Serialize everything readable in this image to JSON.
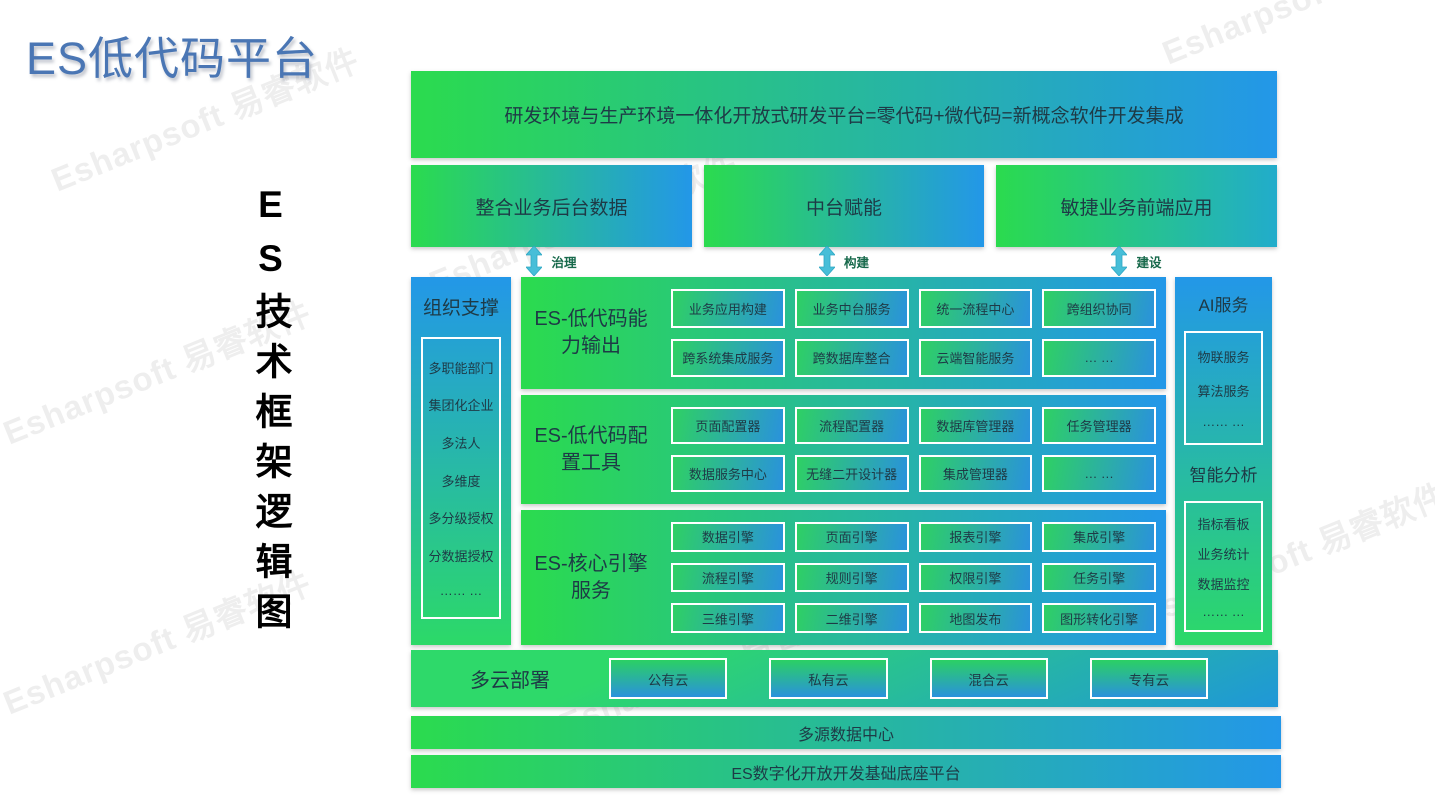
{
  "page": {
    "title": "ES低代码平台",
    "vertical_title": "ES技术框架逻辑图",
    "watermark": "Esharpsoft 易睿软件"
  },
  "banner": {
    "text": "研发环境与生产环境一体化开放式研发平台=零代码+微代码=新概念软件开发集成"
  },
  "pillars": [
    {
      "label": "整合业务后台数据",
      "arrow_label": "治理"
    },
    {
      "label": "中台赋能",
      "arrow_label": "构建"
    },
    {
      "label": "敏捷业务前端应用",
      "arrow_label": "建设"
    }
  ],
  "org_column": {
    "title": "组织支撑",
    "items": [
      "多职能部门",
      "集团化企业",
      "多法人",
      "多维度",
      "多分级授权",
      "分数据授权",
      "…… …"
    ]
  },
  "capability_rows": [
    {
      "title": "ES-低代码能力输出",
      "items": [
        "业务应用构建",
        "业务中台服务",
        "统一流程中心",
        "跨组织协同",
        "跨系统集成服务",
        "跨数据库整合",
        "云端智能服务",
        "… …"
      ]
    },
    {
      "title": "ES-低代码配置工具",
      "items": [
        "页面配置器",
        "流程配置器",
        "数据库管理器",
        "任务管理器",
        "数据服务中心",
        "无缝二开设计器",
        "集成管理器",
        "… …"
      ]
    },
    {
      "title": "ES-核心引擎服务",
      "items": [
        "数据引擎",
        "页面引擎",
        "报表引擎",
        "集成引擎",
        "流程引擎",
        "规则引擎",
        "权限引擎",
        "任务引擎",
        "三维引擎",
        "二维引擎",
        "地图发布",
        "图形转化引擎"
      ]
    }
  ],
  "right_column": {
    "sections": [
      {
        "title": "AI服务",
        "items": [
          "物联服务",
          "算法服务",
          "…… …"
        ]
      },
      {
        "title": "智能分析",
        "items": [
          "指标看板",
          "业务统计",
          "数据监控",
          "…… …"
        ]
      }
    ]
  },
  "cloud_row": {
    "title": "多云部署",
    "items": [
      "公有云",
      "私有云",
      "混合云",
      "专有云"
    ]
  },
  "bottom_bars": [
    "多源数据中心",
    "ES数字化开放开发基础底座平台"
  ],
  "colors": {
    "gradient_green": "#2bdb4e",
    "gradient_blue": "#2397e8",
    "arrow_cyan": "#47bed8",
    "arrow_label_green": "#17694b",
    "title_blue": "#4a76b4",
    "watermark_gray": "rgba(150,150,150,0.16)"
  }
}
